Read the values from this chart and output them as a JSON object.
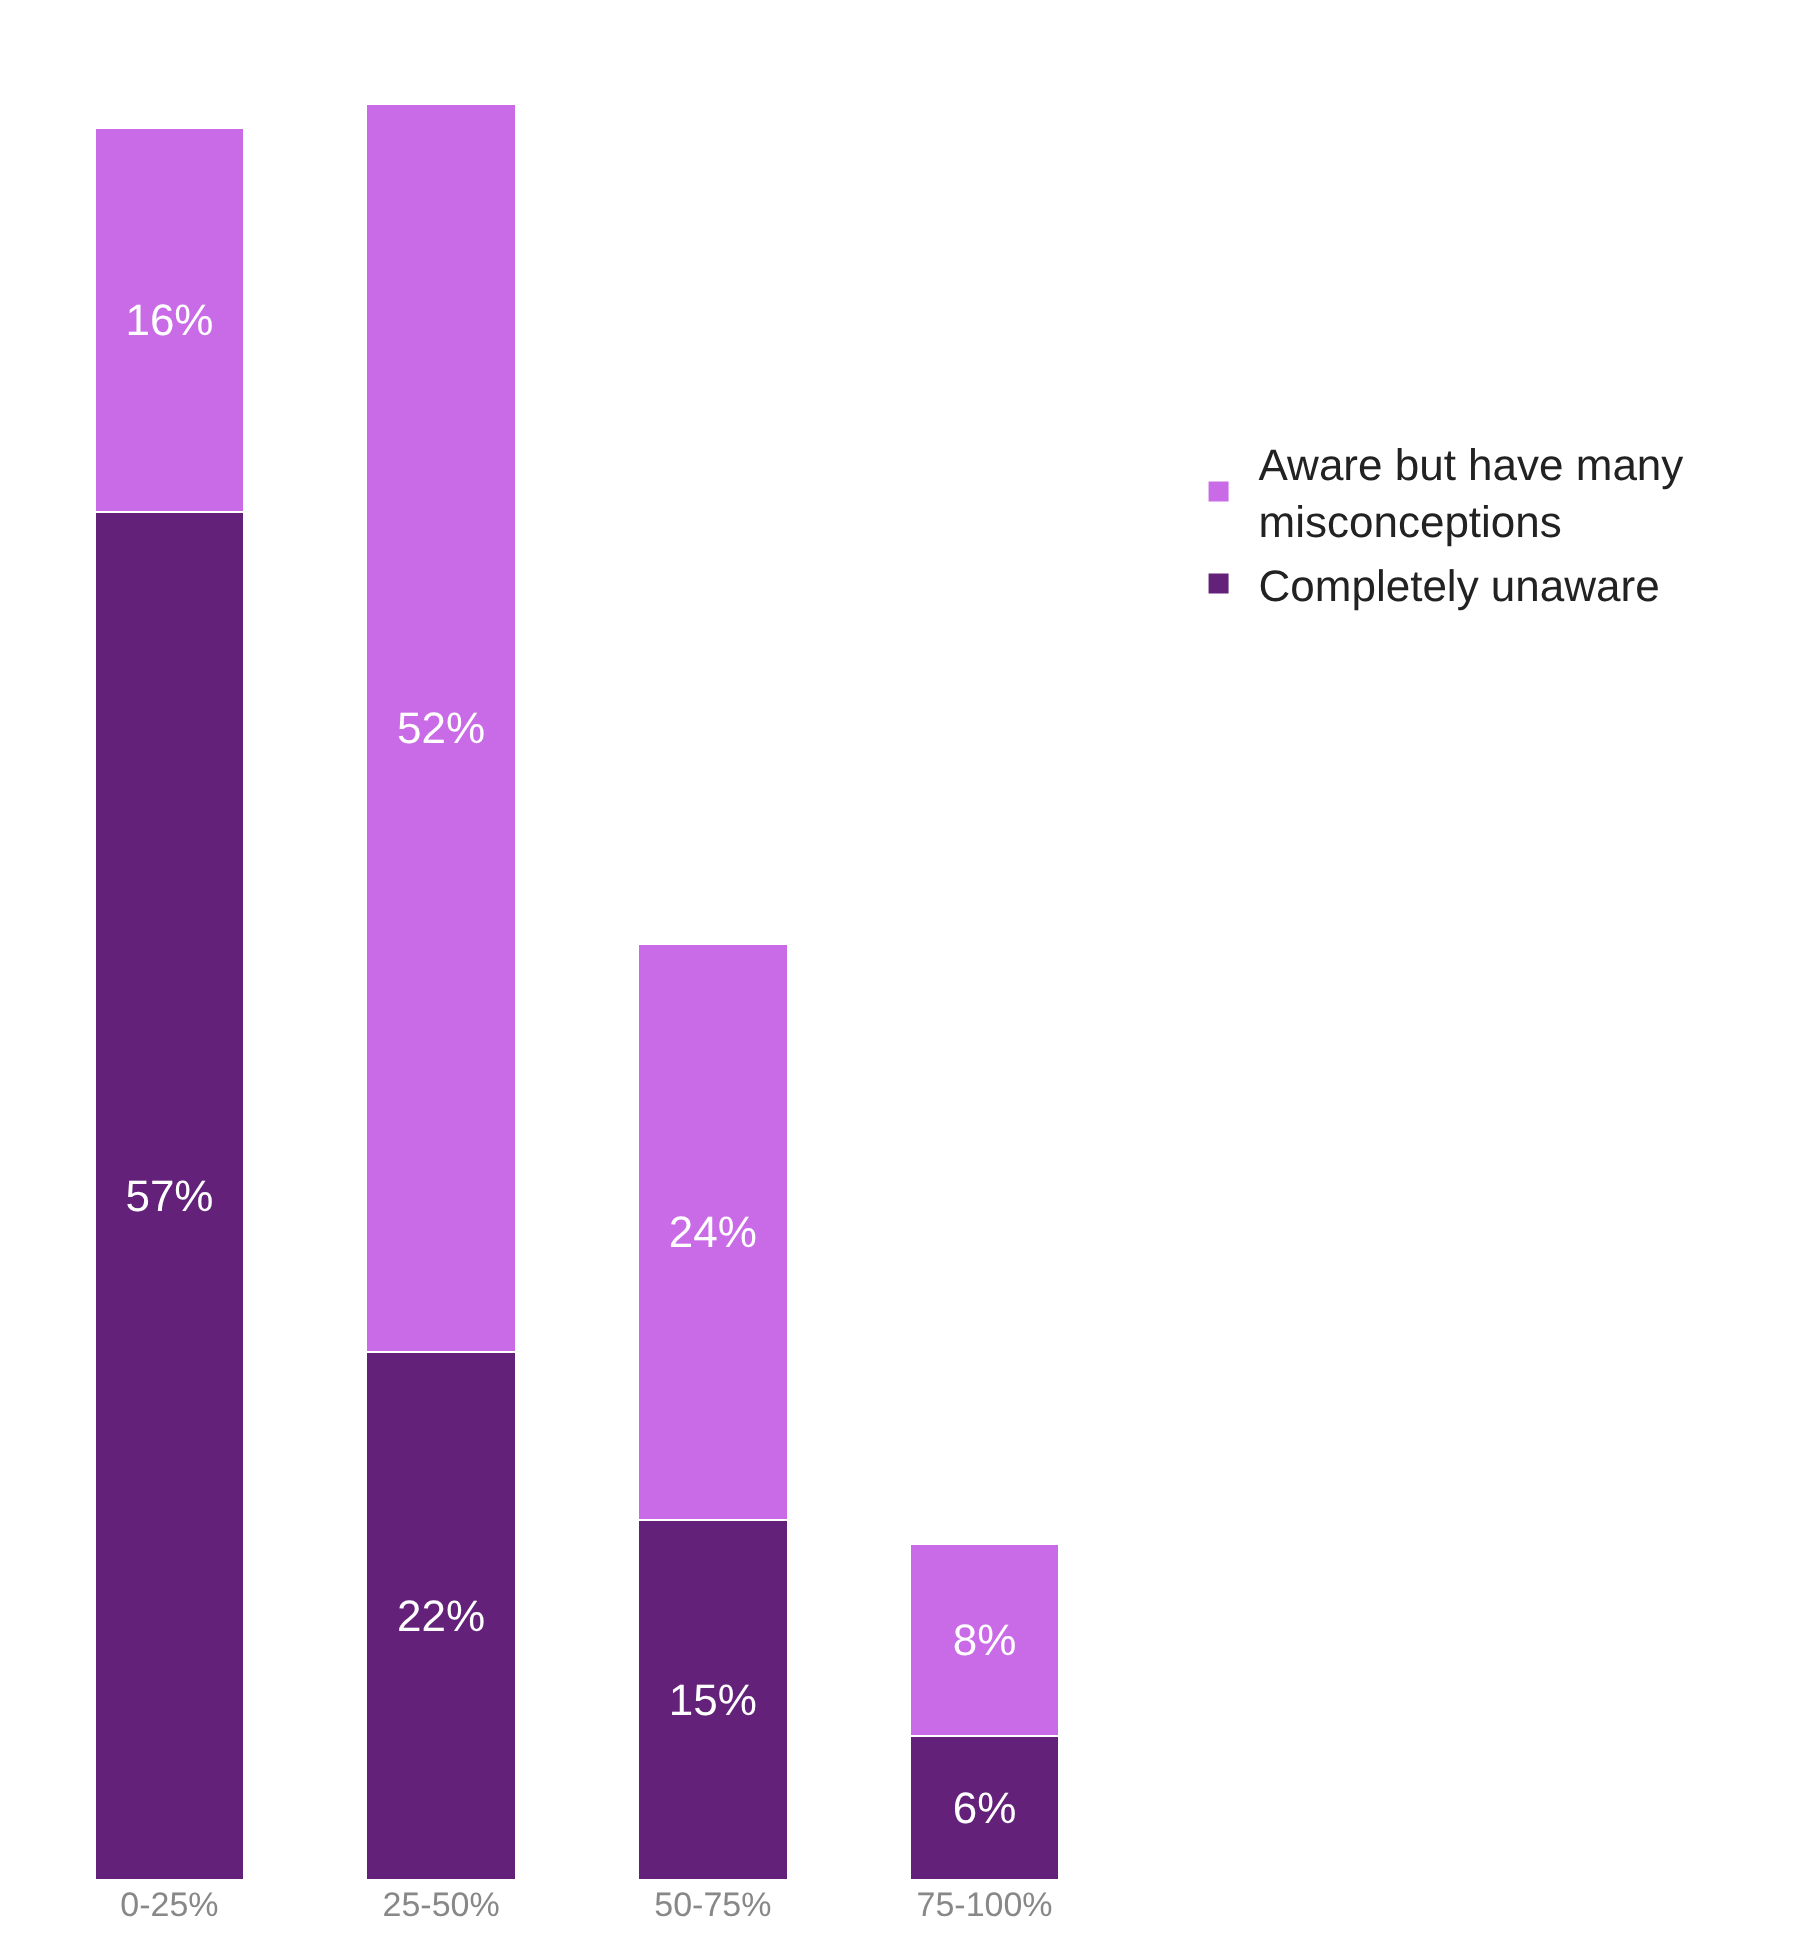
{
  "chart_data": {
    "type": "bar",
    "stacked": true,
    "categories": [
      "0-25%",
      "25-50%",
      "50-75%",
      "75-100%"
    ],
    "series": [
      {
        "name": "Completely unaware",
        "color": "#63217a",
        "values": [
          57,
          22,
          15,
          6
        ],
        "value_labels": [
          "57%",
          "22%",
          "15%",
          "6%"
        ]
      },
      {
        "name": "Aware but have many misconceptions",
        "color": "#c96be6",
        "values": [
          16,
          52,
          24,
          8
        ],
        "value_labels": [
          "16%",
          "52%",
          "24%",
          "8%"
        ]
      }
    ],
    "legend": "right",
    "tick_labels": "x"
  }
}
